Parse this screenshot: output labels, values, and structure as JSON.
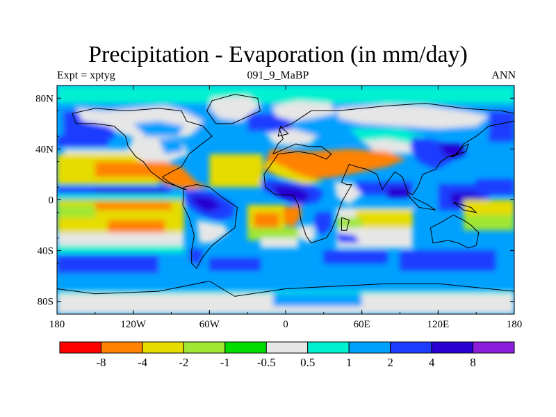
{
  "chart_data": {
    "type": "heatmap",
    "title": "Precipitation - Evaporation (in mm/day)",
    "subtitle_left": "Expt = xptyg",
    "subtitle_center": "091_9_MaBP",
    "subtitle_right": "ANN",
    "x_ticks": [
      "180",
      "120W",
      "60W",
      "0",
      "60E",
      "120E",
      "180"
    ],
    "y_ticks": [
      "80N",
      "40N",
      "0",
      "40S",
      "80S"
    ],
    "x_range": [
      -180,
      180
    ],
    "y_range": [
      -90,
      90
    ],
    "colorbar": {
      "labels": [
        "-8",
        "-4",
        "-2",
        "-1",
        "-0.5",
        "0.5",
        "1",
        "2",
        "4",
        "8"
      ],
      "colors": [
        "#ff0000",
        "#ff8200",
        "#e6dc00",
        "#a0e632",
        "#00dc00",
        "#e6e6e6",
        "#00f0d2",
        "#00a0ff",
        "#1e3cff",
        "#2800d2",
        "#8c1edc"
      ]
    },
    "palette": {
      "red": "#ff0000",
      "orange": "#ff8200",
      "yellow": "#e6dc00",
      "ltgreen": "#a0e632",
      "green": "#00dc00",
      "gray": "#e6e6e6",
      "cyan": "#00f0d2",
      "ltblue": "#00a0ff",
      "blue": "#1e3cff",
      "dkblue": "#2800d2",
      "purple": "#8c1edc"
    }
  }
}
